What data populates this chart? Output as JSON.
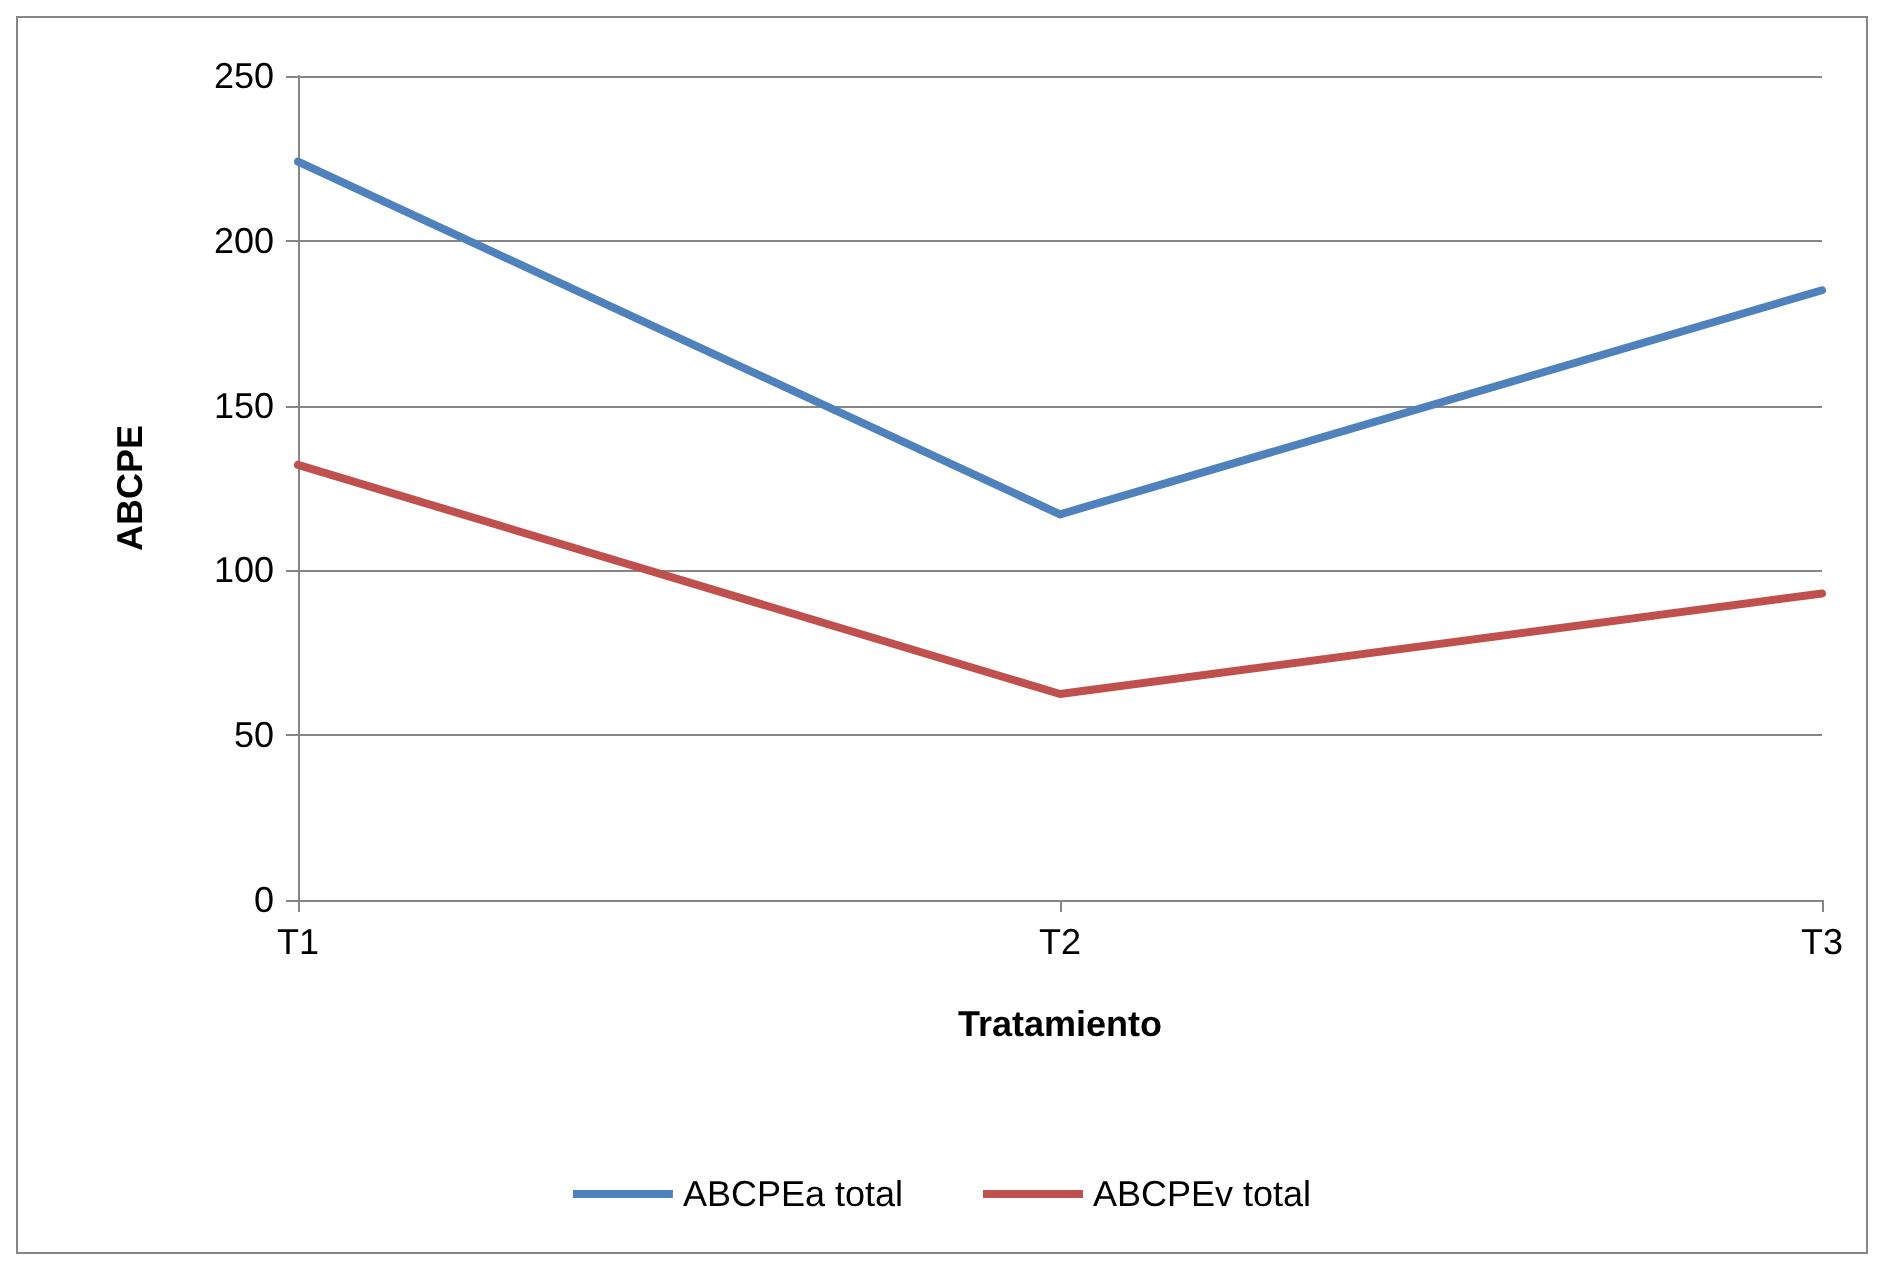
{
  "chart_data": {
    "type": "line",
    "xlabel": "Tratamiento",
    "ylabel": "ABCPE",
    "categories": [
      "T1",
      "T2",
      "T3"
    ],
    "series": [
      {
        "name": "ABCPEa total",
        "color": "#4f81bd",
        "values": [
          224,
          117,
          185
        ]
      },
      {
        "name": "ABCPEv total",
        "color": "#c0504d",
        "values": [
          132,
          62.5,
          93
        ]
      }
    ],
    "ylim": [
      0,
      250
    ],
    "yticks": [
      0,
      50,
      100,
      150,
      200,
      250
    ],
    "grid": "y",
    "legend": "bottom",
    "marker": "none",
    "line_style": "solid"
  }
}
